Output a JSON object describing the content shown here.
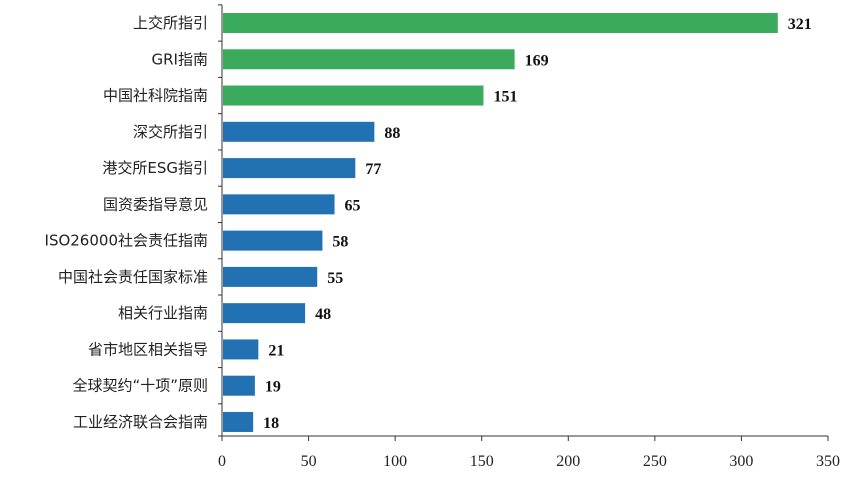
{
  "chart_data": {
    "type": "bar",
    "orientation": "horizontal",
    "title": "",
    "xlabel": "",
    "ylabel": "",
    "xlim": [
      0,
      350
    ],
    "xticks": [
      0,
      50,
      100,
      150,
      200,
      250,
      300,
      350
    ],
    "grid": false,
    "categories": [
      "上交所指引",
      "GRI指南",
      "中国社科院指南",
      "深交所指引",
      "港交所ESG指引",
      "国资委指导意见",
      "ISO26000社会责任指南",
      "中国社会责任国家标准",
      "相关行业指南",
      "省市地区相关指导",
      "全球契约“十项”原则",
      "工业经济联合会指南"
    ],
    "values": [
      321,
      169,
      151,
      88,
      77,
      65,
      58,
      55,
      48,
      21,
      19,
      18
    ],
    "bar_colors": [
      "#3aaa5c",
      "#3aaa5c",
      "#3aaa5c",
      "#2271b3",
      "#2271b3",
      "#2271b3",
      "#2271b3",
      "#2271b3",
      "#2271b3",
      "#2271b3",
      "#2271b3",
      "#2271b3"
    ]
  }
}
